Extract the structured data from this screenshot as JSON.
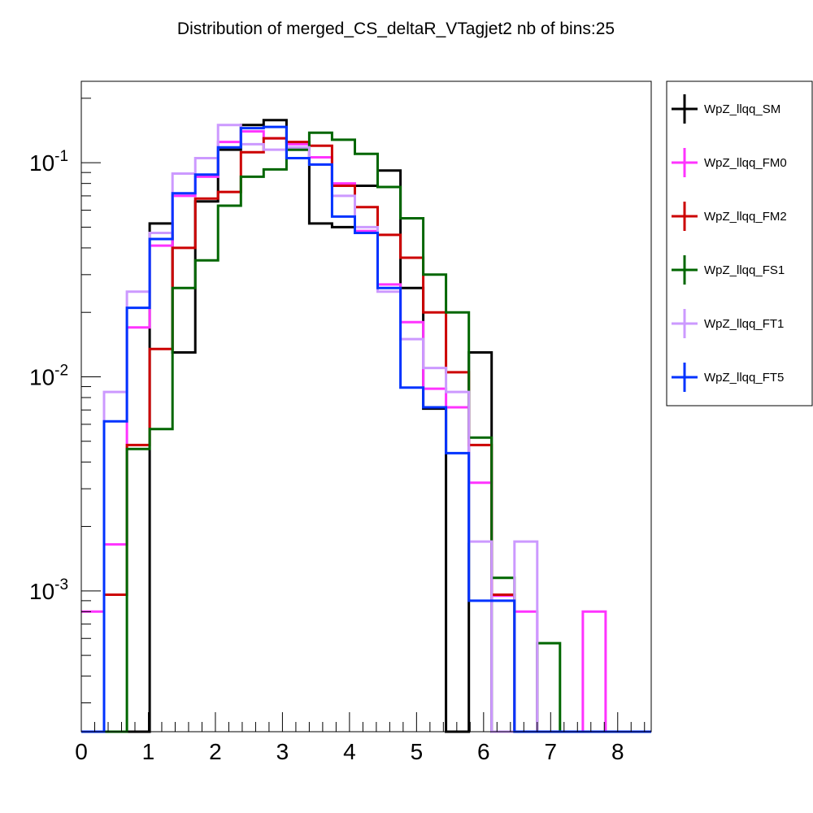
{
  "chart_data": {
    "type": "line",
    "title": "Distribution of merged_CS_deltaR_VTagjet2 nb of bins:25",
    "xlabel": "",
    "ylabel": "",
    "xlim": [
      0,
      8.5
    ],
    "ylim": [
      0.00022,
      0.24
    ],
    "yscale": "log",
    "grid": false,
    "legend_position": "right",
    "x_ticks": [
      "0",
      "1",
      "2",
      "3",
      "4",
      "5",
      "6",
      "7",
      "8"
    ],
    "y_tick_labels": [
      {
        "base": "10",
        "exp": "-1",
        "value": 0.1
      },
      {
        "base": "10",
        "exp": "-2",
        "value": 0.01
      },
      {
        "base": "10",
        "exp": "-3",
        "value": 0.001
      }
    ],
    "bin_edges": [
      0,
      0.34,
      0.68,
      1.02,
      1.36,
      1.7,
      2.04,
      2.38,
      2.72,
      3.06,
      3.4,
      3.74,
      4.08,
      4.42,
      4.76,
      5.1,
      5.44,
      5.78,
      6.12,
      6.46,
      6.8,
      7.14,
      7.48,
      7.82,
      8.16,
      8.5
    ],
    "series": [
      {
        "name": "WpZ_llqq_SM",
        "color": "#000000",
        "values": [
          0,
          0,
          0,
          0.052,
          0.013,
          0.066,
          0.115,
          0.15,
          0.158,
          0.115,
          0.052,
          0.05,
          0.078,
          0.092,
          0.026,
          0.0071,
          0,
          0.013,
          0,
          0,
          0,
          0,
          0,
          0,
          0
        ]
      },
      {
        "name": "WpZ_llqq_FM0",
        "color": "#ff33ff",
        "values": [
          0.0008,
          0.00165,
          0.017,
          0.041,
          0.07,
          0.086,
          0.125,
          0.14,
          0.13,
          0.122,
          0.106,
          0.08,
          0.048,
          0.027,
          0.018,
          0.0088,
          0.0072,
          0.0032,
          0.00095,
          0.0008,
          0,
          0,
          0.0008,
          0,
          0
        ]
      },
      {
        "name": "WpZ_llqq_FM2",
        "color": "#cc0000",
        "values": [
          0,
          0.00096,
          0.0048,
          0.0135,
          0.04,
          0.068,
          0.073,
          0.112,
          0.13,
          0.125,
          0.12,
          0.078,
          0.062,
          0.046,
          0.036,
          0.02,
          0.0105,
          0.0048,
          0.00096,
          0,
          0,
          0,
          0,
          0,
          0
        ]
      },
      {
        "name": "WpZ_llqq_FS1",
        "color": "#006600",
        "values": [
          0,
          0,
          0.0046,
          0.0057,
          0.026,
          0.035,
          0.063,
          0.086,
          0.093,
          0.115,
          0.138,
          0.128,
          0.11,
          0.077,
          0.055,
          0.03,
          0.02,
          0.0052,
          0.00115,
          0,
          0.00057,
          0,
          0,
          0,
          0
        ]
      },
      {
        "name": "WpZ_llqq_FT1",
        "color": "#cc99ff",
        "values": [
          0,
          0.0085,
          0.025,
          0.047,
          0.089,
          0.105,
          0.15,
          0.122,
          0.115,
          0.118,
          0.098,
          0.07,
          0.05,
          0.025,
          0.015,
          0.011,
          0.0085,
          0.0017,
          0,
          0.0017,
          0,
          0,
          0,
          0,
          0
        ]
      },
      {
        "name": "WpZ_llqq_FT5",
        "color": "#0033ff",
        "values": [
          0,
          0.0062,
          0.021,
          0.044,
          0.072,
          0.088,
          0.118,
          0.145,
          0.147,
          0.105,
          0.098,
          0.056,
          0.047,
          0.026,
          0.0089,
          0.0072,
          0.0044,
          0.0009,
          0.0009,
          0,
          0,
          0,
          0,
          0,
          0
        ]
      }
    ]
  }
}
